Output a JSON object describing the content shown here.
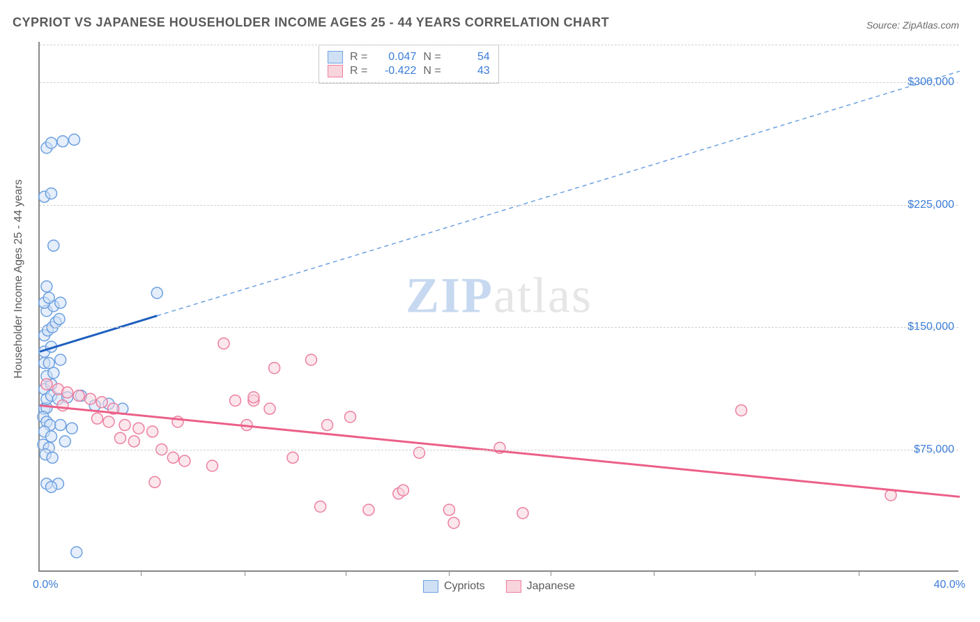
{
  "title": "CYPRIOT VS JAPANESE HOUSEHOLDER INCOME AGES 25 - 44 YEARS CORRELATION CHART",
  "source": "Source: ZipAtlas.com",
  "y_axis_label": "Householder Income Ages 25 - 44 years",
  "watermark_zip": "ZIP",
  "watermark_rest": "atlas",
  "chart": {
    "type": "scatter",
    "xlim": [
      0,
      40
    ],
    "ylim": [
      0,
      325000
    ],
    "x_min_label": "0.0%",
    "x_max_label": "40.0%",
    "x_tick_positions": [
      4.4,
      8.9,
      13.3,
      17.8,
      22.2,
      26.7,
      31.1,
      35.6
    ],
    "y_ticks": [
      {
        "v": 75000,
        "label": "$75,000"
      },
      {
        "v": 150000,
        "label": "$150,000"
      },
      {
        "v": 225000,
        "label": "$225,000"
      },
      {
        "v": 300000,
        "label": "$300,000"
      }
    ],
    "grid_color": "#d8d8d8",
    "background_color": "#ffffff",
    "marker_radius": 8,
    "marker_stroke_width": 1.5,
    "series": [
      {
        "name": "Cypriots",
        "fill": "#cfe0f5",
        "stroke": "#6ca0e0",
        "fill_opacity": 0.55,
        "r_label": "R =",
        "r_value": "0.047",
        "n_label": "N =",
        "n_value": "54",
        "trend": {
          "solid": {
            "x1": 0,
            "y1": 135000,
            "x2": 5.1,
            "y2": 157000,
            "color": "#1f5fbf",
            "width": 3
          },
          "dashed": {
            "x1": 5.1,
            "y1": 157000,
            "x2": 40,
            "y2": 307000,
            "color": "#6ca0e0",
            "width": 1.5,
            "dash": "6,5"
          }
        },
        "points": [
          {
            "x": 0.2,
            "y": 100000
          },
          {
            "x": 0.3,
            "y": 100500
          },
          {
            "x": 0.2,
            "y": 112000
          },
          {
            "x": 0.5,
            "y": 115000
          },
          {
            "x": 0.3,
            "y": 120000
          },
          {
            "x": 0.6,
            "y": 122000
          },
          {
            "x": 0.2,
            "y": 128000
          },
          {
            "x": 0.4,
            "y": 128000
          },
          {
            "x": 0.9,
            "y": 130000
          },
          {
            "x": 0.2,
            "y": 135000
          },
          {
            "x": 0.5,
            "y": 138000
          },
          {
            "x": 5.1,
            "y": 171000
          },
          {
            "x": 0.3,
            "y": 160000
          },
          {
            "x": 0.6,
            "y": 163000
          },
          {
            "x": 0.9,
            "y": 165000
          },
          {
            "x": 0.2,
            "y": 165000
          },
          {
            "x": 0.4,
            "y": 168000
          },
          {
            "x": 0.3,
            "y": 175000
          },
          {
            "x": 0.6,
            "y": 200000
          },
          {
            "x": 0.2,
            "y": 230000
          },
          {
            "x": 0.5,
            "y": 232000
          },
          {
            "x": 0.3,
            "y": 260000
          },
          {
            "x": 0.5,
            "y": 263000
          },
          {
            "x": 1.0,
            "y": 264000
          },
          {
            "x": 1.5,
            "y": 265000
          },
          {
            "x": 0.15,
            "y": 95000
          },
          {
            "x": 0.3,
            "y": 92000
          },
          {
            "x": 0.45,
            "y": 90000
          },
          {
            "x": 0.9,
            "y": 90000
          },
          {
            "x": 1.4,
            "y": 88000
          },
          {
            "x": 0.2,
            "y": 86000
          },
          {
            "x": 0.5,
            "y": 83000
          },
          {
            "x": 1.1,
            "y": 80000
          },
          {
            "x": 0.15,
            "y": 78000
          },
          {
            "x": 0.4,
            "y": 76000
          },
          {
            "x": 0.25,
            "y": 72000
          },
          {
            "x": 0.55,
            "y": 70000
          },
          {
            "x": 0.8,
            "y": 54000
          },
          {
            "x": 0.3,
            "y": 54000
          },
          {
            "x": 0.5,
            "y": 52000
          },
          {
            "x": 1.6,
            "y": 12000
          },
          {
            "x": 0.3,
            "y": 106000
          },
          {
            "x": 0.5,
            "y": 108000
          },
          {
            "x": 0.8,
            "y": 106000
          },
          {
            "x": 1.2,
            "y": 107000
          },
          {
            "x": 1.8,
            "y": 108000
          },
          {
            "x": 2.4,
            "y": 102000
          },
          {
            "x": 3.0,
            "y": 103000
          },
          {
            "x": 3.6,
            "y": 100000
          },
          {
            "x": 0.2,
            "y": 145000
          },
          {
            "x": 0.35,
            "y": 148000
          },
          {
            "x": 0.55,
            "y": 150000
          },
          {
            "x": 0.7,
            "y": 153000
          },
          {
            "x": 0.85,
            "y": 155000
          }
        ]
      },
      {
        "name": "Japanese",
        "fill": "#f8d4dc",
        "stroke": "#ec7fa0",
        "fill_opacity": 0.55,
        "r_label": "R =",
        "r_value": "-0.422",
        "n_label": "N =",
        "n_value": "43",
        "trend": {
          "solid": {
            "x1": 0,
            "y1": 102000,
            "x2": 40,
            "y2": 46000,
            "color": "#ec5f88",
            "width": 3
          }
        },
        "points": [
          {
            "x": 0.3,
            "y": 115000
          },
          {
            "x": 0.8,
            "y": 112000
          },
          {
            "x": 1.2,
            "y": 110000
          },
          {
            "x": 1.7,
            "y": 108000
          },
          {
            "x": 2.2,
            "y": 106000
          },
          {
            "x": 2.7,
            "y": 104000
          },
          {
            "x": 3.2,
            "y": 100000
          },
          {
            "x": 3.0,
            "y": 92000
          },
          {
            "x": 3.7,
            "y": 90000
          },
          {
            "x": 4.3,
            "y": 88000
          },
          {
            "x": 4.9,
            "y": 86000
          },
          {
            "x": 2.5,
            "y": 94000
          },
          {
            "x": 3.5,
            "y": 82000
          },
          {
            "x": 4.1,
            "y": 80000
          },
          {
            "x": 5.0,
            "y": 55000
          },
          {
            "x": 5.3,
            "y": 75000
          },
          {
            "x": 5.8,
            "y": 70000
          },
          {
            "x": 6.3,
            "y": 68000
          },
          {
            "x": 6.0,
            "y": 92000
          },
          {
            "x": 7.5,
            "y": 65000
          },
          {
            "x": 8.0,
            "y": 140000
          },
          {
            "x": 8.5,
            "y": 105000
          },
          {
            "x": 9.0,
            "y": 90000
          },
          {
            "x": 9.3,
            "y": 105000
          },
          {
            "x": 9.3,
            "y": 107000
          },
          {
            "x": 10.0,
            "y": 100000
          },
          {
            "x": 10.2,
            "y": 125000
          },
          {
            "x": 11.0,
            "y": 70000
          },
          {
            "x": 11.8,
            "y": 130000
          },
          {
            "x": 12.2,
            "y": 40000
          },
          {
            "x": 12.5,
            "y": 90000
          },
          {
            "x": 13.5,
            "y": 95000
          },
          {
            "x": 14.3,
            "y": 38000
          },
          {
            "x": 15.6,
            "y": 48000
          },
          {
            "x": 15.8,
            "y": 50000
          },
          {
            "x": 16.5,
            "y": 73000
          },
          {
            "x": 17.8,
            "y": 38000
          },
          {
            "x": 18.0,
            "y": 30000
          },
          {
            "x": 20.0,
            "y": 76000
          },
          {
            "x": 21.0,
            "y": 36000
          },
          {
            "x": 30.5,
            "y": 99000
          },
          {
            "x": 37.0,
            "y": 47000
          },
          {
            "x": 1.0,
            "y": 102000
          }
        ]
      }
    ]
  },
  "bottom_legend": [
    {
      "label": "Cypriots",
      "fill": "#cfe0f5",
      "stroke": "#6ca0e0"
    },
    {
      "label": "Japanese",
      "fill": "#f8d4dc",
      "stroke": "#ec7fa0"
    }
  ]
}
